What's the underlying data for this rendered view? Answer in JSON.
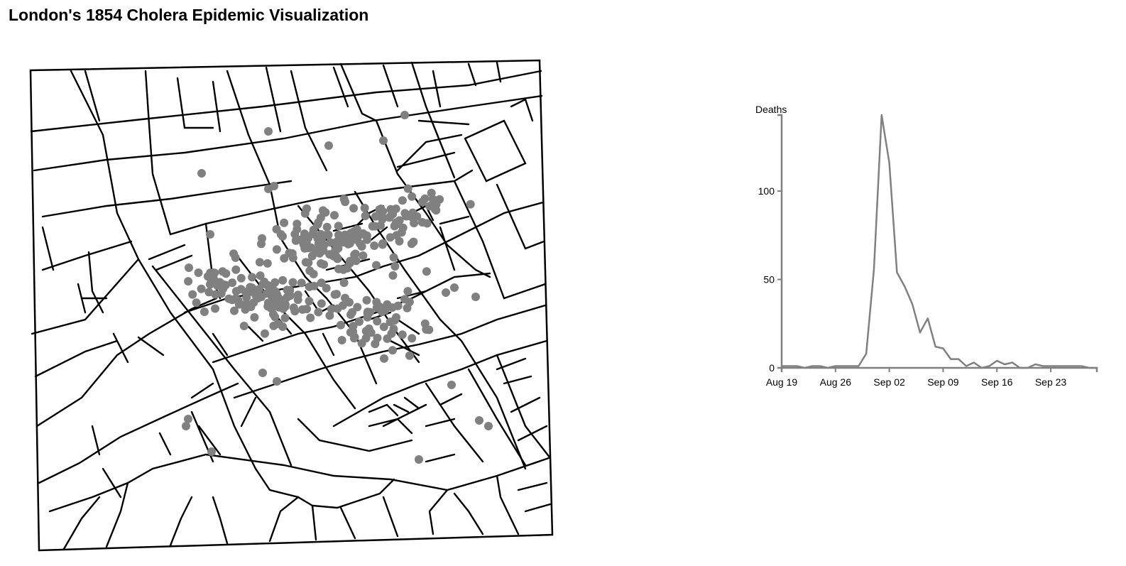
{
  "page": {
    "title": "London's 1854 Cholera Epidemic Visualization"
  },
  "colors": {
    "street": "#000000",
    "death": "#808080",
    "line": "#808080",
    "axis": "#808080"
  },
  "map": {
    "name": "soho-street-map",
    "death_marker_color": "#808080"
  },
  "chart_data": {
    "type": "line",
    "title": "",
    "xlabel": "",
    "ylabel": "Deaths",
    "x_ticks": [
      "Aug 19",
      "Aug 26",
      "Sep 02",
      "Sep 09",
      "Sep 16",
      "Sep 23"
    ],
    "y_ticks": [
      0,
      50,
      100
    ],
    "xlim": [
      "1854-08-19",
      "1854-09-29"
    ],
    "ylim": [
      0,
      143
    ],
    "grid": false,
    "series": [
      {
        "x": [
          "1854-08-19",
          "1854-08-20",
          "1854-08-21",
          "1854-08-22",
          "1854-08-23",
          "1854-08-24",
          "1854-08-25",
          "1854-08-26",
          "1854-08-27",
          "1854-08-28",
          "1854-08-29",
          "1854-08-30",
          "1854-08-31",
          "1854-09-01",
          "1854-09-02",
          "1854-09-03",
          "1854-09-04",
          "1854-09-05",
          "1854-09-06",
          "1854-09-07",
          "1854-09-08",
          "1854-09-09",
          "1854-09-10",
          "1854-09-11",
          "1854-09-12",
          "1854-09-13",
          "1854-09-14",
          "1854-09-15",
          "1854-09-16",
          "1854-09-17",
          "1854-09-18",
          "1854-09-19",
          "1854-09-20",
          "1854-09-21",
          "1854-09-22",
          "1854-09-23",
          "1854-09-24",
          "1854-09-25",
          "1854-09-26",
          "1854-09-27",
          "1854-09-28",
          "1854-09-29"
        ],
        "values": [
          1,
          1,
          1,
          0,
          1,
          1,
          0,
          1,
          1,
          1,
          1,
          8,
          56,
          143,
          116,
          54,
          46,
          36,
          20,
          28,
          12,
          11,
          5,
          5,
          1,
          3,
          0,
          1,
          4,
          2,
          3,
          0,
          0,
          2,
          1,
          1,
          1,
          1,
          1,
          1,
          0,
          0
        ]
      }
    ]
  }
}
